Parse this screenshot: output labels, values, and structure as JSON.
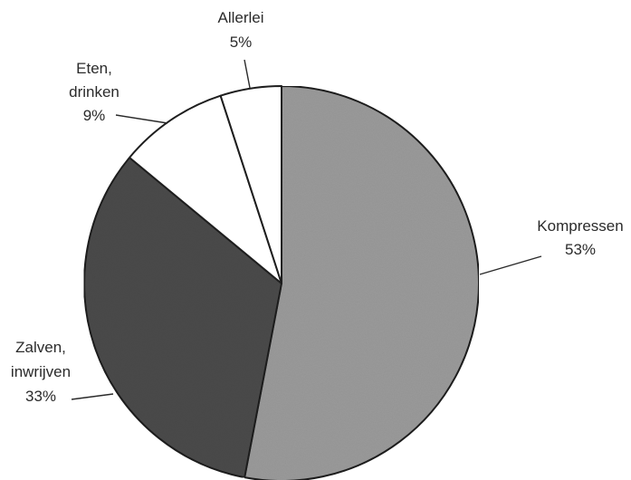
{
  "chart_data": {
    "type": "pie",
    "title": "",
    "start_angle_deg": 0,
    "direction": "clockwise",
    "slices": [
      {
        "label_lines": [
          "Kompressen"
        ],
        "percent_label": "53%",
        "value": 53,
        "color": "#9a9a9a"
      },
      {
        "label_lines": [
          "Zalven,",
          "inwrijven"
        ],
        "percent_label": "33%",
        "value": 33,
        "color": "#4a4a4a"
      },
      {
        "label_lines": [
          "Eten,",
          "drinken"
        ],
        "percent_label": "9%",
        "value": 9,
        "color": "#ffffff"
      },
      {
        "label_lines": [
          "Allerlei"
        ],
        "percent_label": "5%",
        "value": 5,
        "color": "#ffffff"
      }
    ]
  }
}
